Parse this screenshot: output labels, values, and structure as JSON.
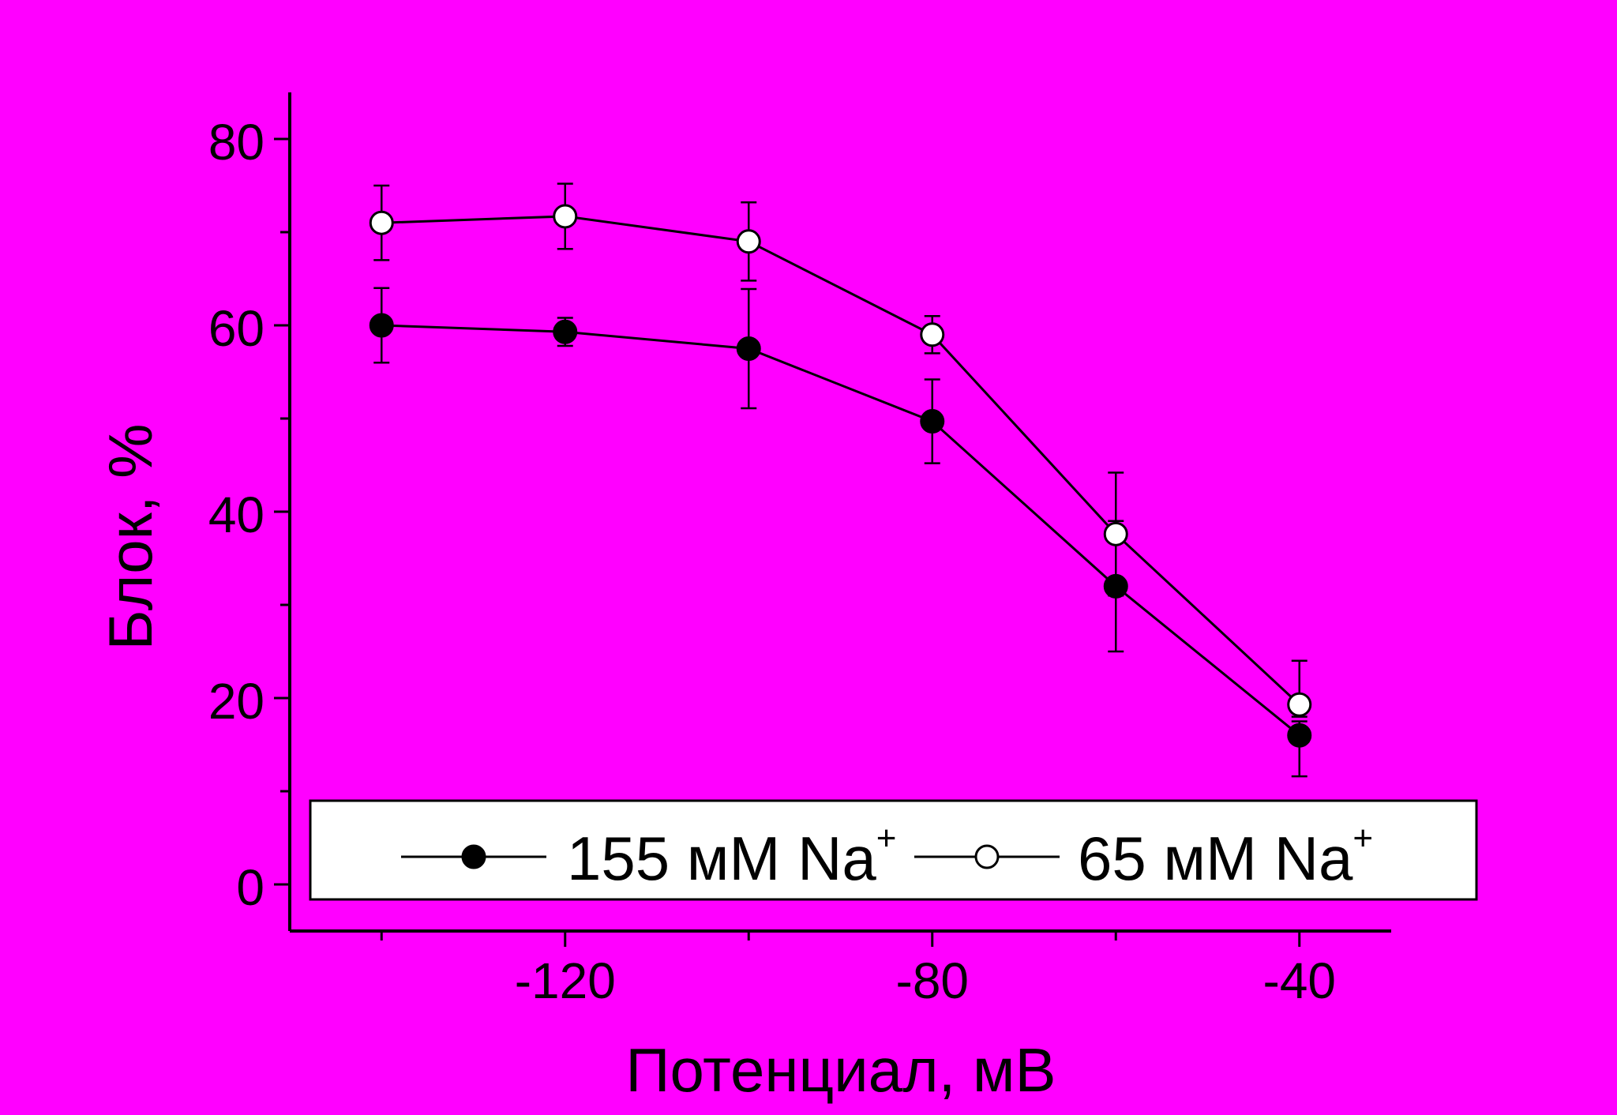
{
  "chart_data": {
    "type": "line",
    "title": "",
    "xlabel": "Потенциал, мВ",
    "ylabel": "Блок, %",
    "xlim": [
      -150,
      -30
    ],
    "ylim": [
      -5,
      85
    ],
    "xticks": [
      -120,
      -80,
      -40
    ],
    "yticks": [
      0,
      20,
      40,
      60,
      80
    ],
    "x": [
      -140,
      -120,
      -100,
      -80,
      -60,
      -40
    ],
    "series": [
      {
        "name": "155 мМ Na",
        "name_sup": "+",
        "marker": "filled-circle",
        "values": [
          60,
          59.3,
          57.5,
          49.7,
          32,
          16
        ],
        "err_low": [
          4,
          1.5,
          6.4,
          4.5,
          7,
          4.4
        ],
        "err_high": [
          4,
          1.5,
          6.4,
          4.5,
          7,
          1.5
        ]
      },
      {
        "name": "65 мМ Na",
        "name_sup": "+",
        "marker": "open-circle",
        "values": [
          71,
          71.7,
          69,
          59,
          37.6,
          19.3
        ],
        "err_low": [
          4,
          3.5,
          4.2,
          2,
          6.6,
          1.3
        ],
        "err_high": [
          4,
          3.5,
          4.2,
          2,
          6.6,
          4.7
        ]
      }
    ],
    "legend": "bottom",
    "grid": false
  },
  "colors": {
    "background": "#ff00ff",
    "axis": "#000000",
    "line": "#000000",
    "open_marker_fill": "#ffffff",
    "legend_fill": "#ffffff"
  }
}
